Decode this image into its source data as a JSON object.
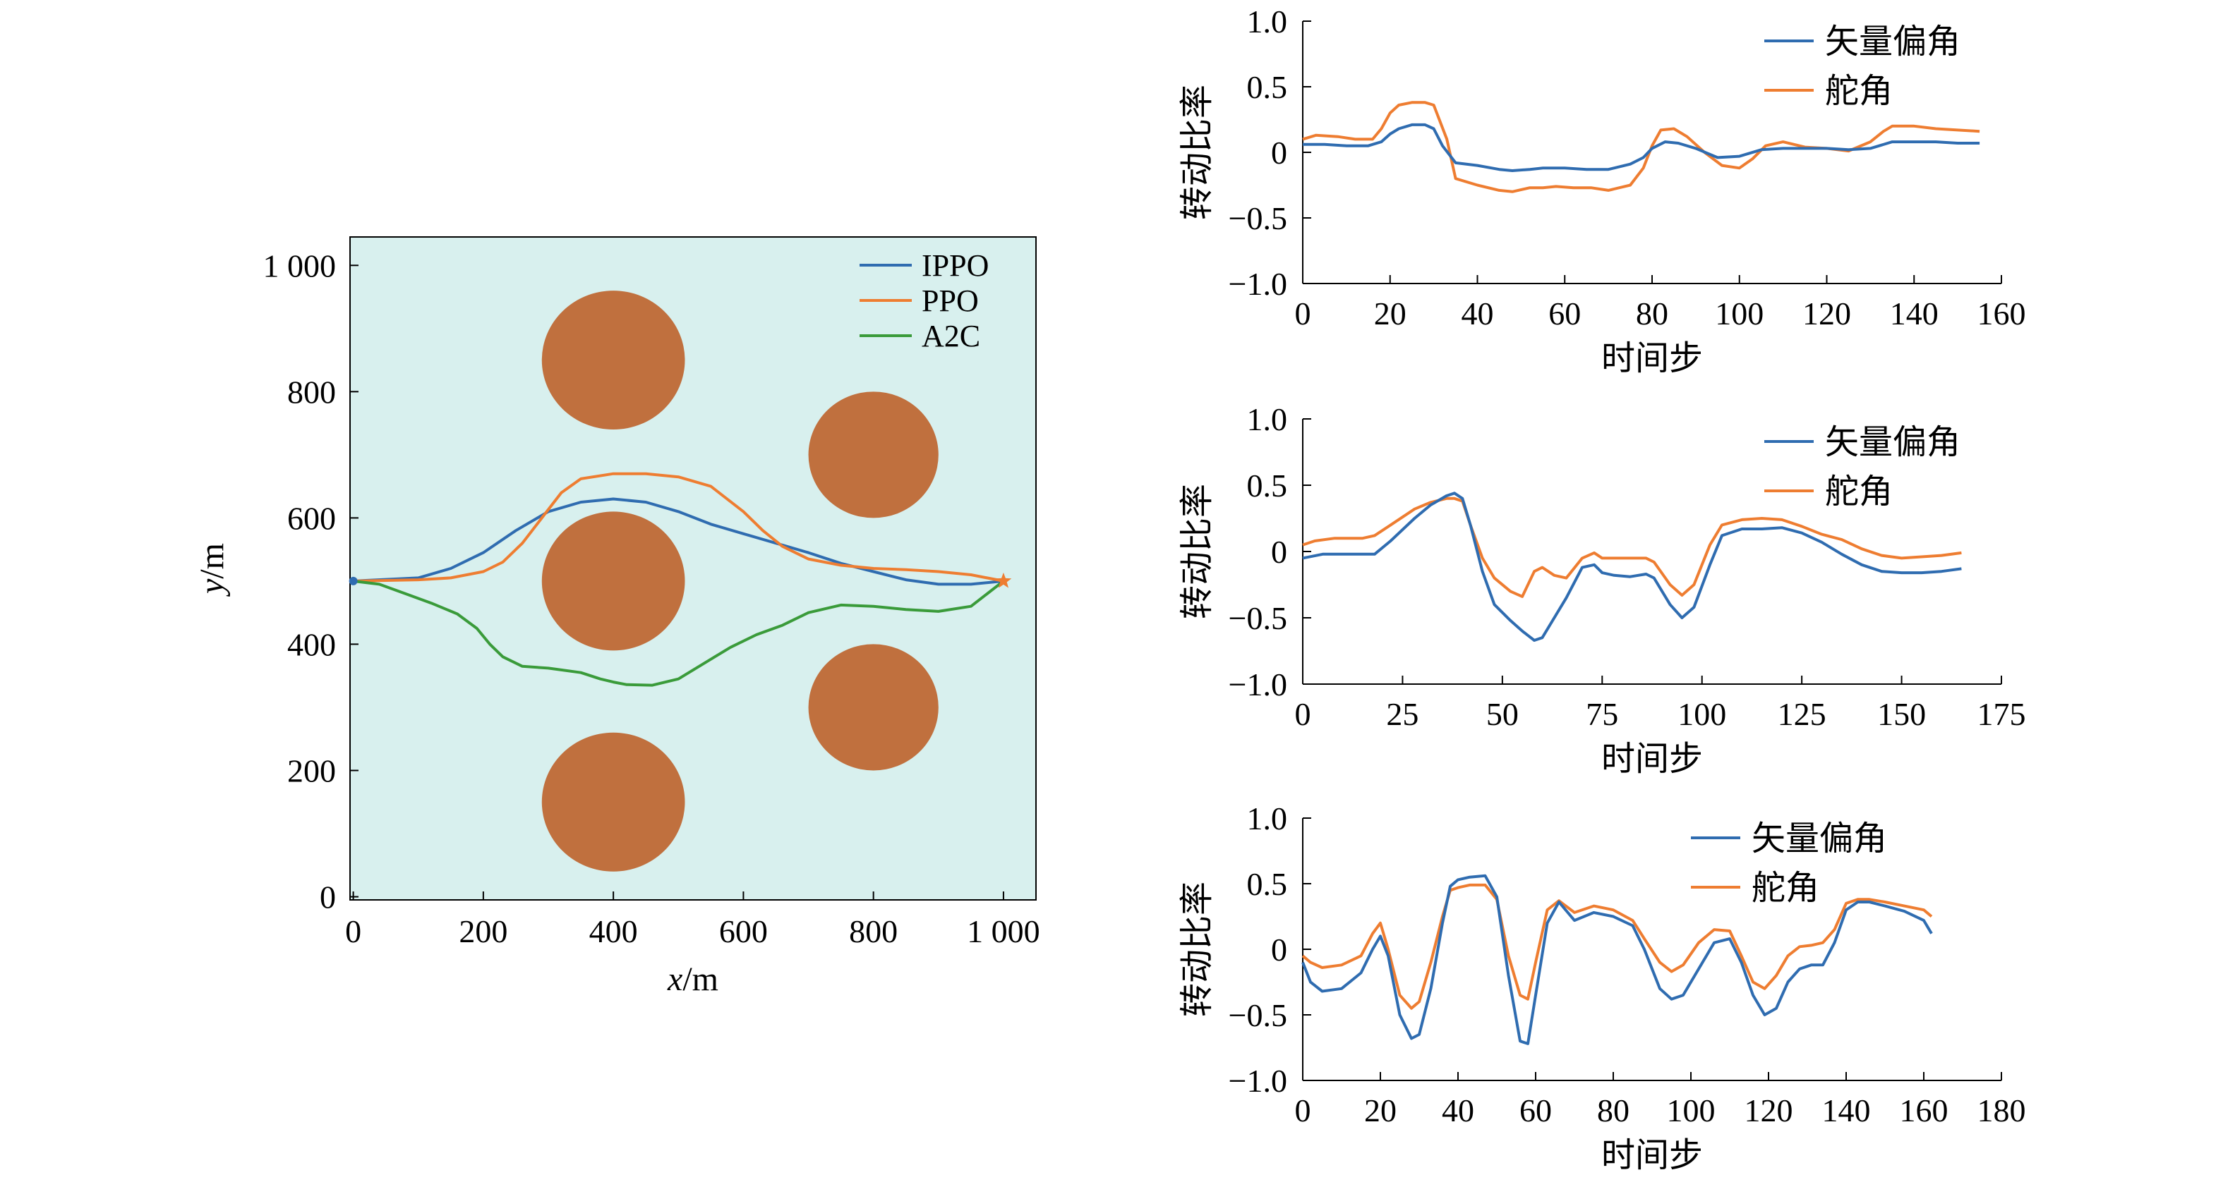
{
  "colors": {
    "ippo": "#2f6cb0",
    "ppo": "#ee7d31",
    "a2c": "#3a9b3a",
    "obstacle": "#c0703e",
    "plot_bg": "#d8f0ee",
    "vector_angle": "#2f6cb0",
    "rudder_angle": "#ee7d31"
  },
  "chart_data": [
    {
      "type": "line",
      "xlabel": "x/m",
      "ylabel": "y/m",
      "xlim": [
        -5,
        1050
      ],
      "ylim": [
        -5,
        1045
      ],
      "xticks": [
        "0",
        "200",
        "400",
        "600",
        "800",
        "1 000"
      ],
      "yticks": [
        "0",
        "200",
        "400",
        "600",
        "800",
        "1 000"
      ],
      "legend": "top-right",
      "obstacles": [
        {
          "cx": 400,
          "cy": 850,
          "r": 110
        },
        {
          "cx": 400,
          "cy": 500,
          "r": 110
        },
        {
          "cx": 400,
          "cy": 150,
          "r": 110
        },
        {
          "cx": 800,
          "cy": 700,
          "r": 100
        },
        {
          "cx": 800,
          "cy": 300,
          "r": 100
        }
      ],
      "start": [
        0,
        500
      ],
      "goal": [
        1000,
        500
      ],
      "series": [
        {
          "name": "IPPO",
          "x": [
            0,
            100,
            150,
            200,
            250,
            300,
            350,
            400,
            450,
            500,
            550,
            600,
            650,
            700,
            750,
            800,
            850,
            900,
            950,
            1000
          ],
          "y": [
            500,
            505,
            520,
            545,
            580,
            610,
            625,
            630,
            625,
            610,
            590,
            575,
            560,
            545,
            528,
            515,
            502,
            495,
            495,
            500
          ]
        },
        {
          "name": "PPO",
          "x": [
            0,
            100,
            150,
            200,
            230,
            260,
            290,
            320,
            350,
            400,
            450,
            500,
            550,
            600,
            630,
            660,
            700,
            750,
            800,
            850,
            900,
            950,
            1000
          ],
          "y": [
            500,
            502,
            505,
            515,
            530,
            560,
            600,
            640,
            662,
            670,
            670,
            665,
            650,
            610,
            580,
            555,
            535,
            525,
            520,
            518,
            515,
            510,
            500
          ]
        },
        {
          "name": "A2C",
          "x": [
            0,
            40,
            80,
            120,
            160,
            190,
            210,
            230,
            260,
            300,
            350,
            380,
            400,
            420,
            460,
            500,
            540,
            580,
            620,
            660,
            700,
            750,
            800,
            850,
            900,
            950,
            1000
          ],
          "y": [
            500,
            495,
            480,
            465,
            448,
            425,
            400,
            380,
            365,
            362,
            355,
            345,
            340,
            336,
            335,
            345,
            370,
            395,
            415,
            430,
            450,
            462,
            460,
            455,
            452,
            460,
            500
          ]
        }
      ]
    },
    {
      "type": "line",
      "xlabel": "时间步",
      "ylabel": "转动比率",
      "xlim": [
        0,
        160
      ],
      "ylim": [
        -1.0,
        1.0
      ],
      "xticks": [
        "0",
        "20",
        "40",
        "60",
        "80",
        "100",
        "120",
        "140",
        "160"
      ],
      "yticks": [
        "1.0",
        "0.5",
        "0",
        "−0.5",
        "−1.0"
      ],
      "legend": "top-right",
      "series": [
        {
          "name": "矢量偏角",
          "x": [
            0,
            5,
            10,
            15,
            18,
            20,
            22,
            25,
            28,
            30,
            32,
            35,
            40,
            45,
            48,
            52,
            55,
            60,
            65,
            70,
            75,
            78,
            80,
            83,
            86,
            90,
            95,
            100,
            105,
            110,
            115,
            120,
            125,
            130,
            135,
            140,
            145,
            150,
            155
          ],
          "y": [
            0.06,
            0.06,
            0.05,
            0.05,
            0.08,
            0.14,
            0.18,
            0.21,
            0.21,
            0.18,
            0.05,
            -0.08,
            -0.1,
            -0.13,
            -0.14,
            -0.13,
            -0.12,
            -0.12,
            -0.13,
            -0.13,
            -0.09,
            -0.04,
            0.03,
            0.08,
            0.07,
            0.03,
            -0.04,
            -0.03,
            0.02,
            0.03,
            0.03,
            0.03,
            0.02,
            0.03,
            0.08,
            0.08,
            0.08,
            0.07,
            0.07
          ]
        },
        {
          "name": "舵角",
          "x": [
            0,
            3,
            8,
            12,
            16,
            18,
            20,
            22,
            25,
            28,
            30,
            33,
            35,
            40,
            45,
            48,
            52,
            55,
            58,
            62,
            66,
            70,
            75,
            78,
            80,
            82,
            85,
            88,
            92,
            96,
            100,
            103,
            106,
            110,
            115,
            120,
            125,
            130,
            133,
            135,
            140,
            145,
            150,
            155
          ],
          "y": [
            0.1,
            0.13,
            0.12,
            0.1,
            0.1,
            0.18,
            0.3,
            0.36,
            0.38,
            0.38,
            0.36,
            0.1,
            -0.2,
            -0.25,
            -0.29,
            -0.3,
            -0.27,
            -0.27,
            -0.26,
            -0.27,
            -0.27,
            -0.29,
            -0.25,
            -0.12,
            0.05,
            0.17,
            0.18,
            0.12,
            0.0,
            -0.1,
            -0.12,
            -0.05,
            0.05,
            0.08,
            0.04,
            0.03,
            0.01,
            0.08,
            0.16,
            0.2,
            0.2,
            0.18,
            0.17,
            0.16
          ]
        }
      ]
    },
    {
      "type": "line",
      "xlabel": "时间步",
      "ylabel": "转动比率",
      "xlim": [
        0,
        175
      ],
      "ylim": [
        -1.0,
        1.0
      ],
      "xticks": [
        "0",
        "25",
        "50",
        "75",
        "100",
        "125",
        "150",
        "175"
      ],
      "yticks": [
        "1.0",
        "0.5",
        "0",
        "−0.5",
        "−1.0"
      ],
      "legend": "top-right",
      "series": [
        {
          "name": "矢量偏角",
          "x": [
            0,
            5,
            10,
            15,
            18,
            22,
            28,
            32,
            36,
            38,
            40,
            42,
            45,
            48,
            52,
            55,
            58,
            60,
            63,
            66,
            70,
            73,
            75,
            78,
            82,
            86,
            88,
            92,
            95,
            98,
            102,
            105,
            110,
            115,
            120,
            125,
            130,
            135,
            140,
            145,
            150,
            155,
            160,
            165
          ],
          "y": [
            -0.05,
            -0.02,
            -0.02,
            -0.02,
            -0.02,
            0.08,
            0.25,
            0.35,
            0.42,
            0.44,
            0.4,
            0.2,
            -0.15,
            -0.4,
            -0.52,
            -0.6,
            -0.67,
            -0.65,
            -0.5,
            -0.35,
            -0.12,
            -0.1,
            -0.16,
            -0.18,
            -0.19,
            -0.17,
            -0.2,
            -0.4,
            -0.5,
            -0.42,
            -0.1,
            0.12,
            0.17,
            0.17,
            0.18,
            0.14,
            0.07,
            -0.02,
            -0.1,
            -0.15,
            -0.16,
            -0.16,
            -0.15,
            -0.13
          ]
        },
        {
          "name": "舵角",
          "x": [
            0,
            3,
            8,
            15,
            18,
            22,
            28,
            32,
            36,
            38,
            40,
            42,
            45,
            48,
            52,
            55,
            58,
            60,
            63,
            66,
            70,
            73,
            75,
            78,
            82,
            86,
            88,
            92,
            95,
            98,
            102,
            105,
            110,
            115,
            120,
            125,
            130,
            135,
            140,
            145,
            150,
            155,
            160,
            165
          ],
          "y": [
            0.05,
            0.08,
            0.1,
            0.1,
            0.12,
            0.2,
            0.32,
            0.37,
            0.4,
            0.4,
            0.38,
            0.2,
            -0.05,
            -0.2,
            -0.3,
            -0.34,
            -0.15,
            -0.12,
            -0.18,
            -0.2,
            -0.05,
            -0.01,
            -0.05,
            -0.05,
            -0.05,
            -0.05,
            -0.08,
            -0.25,
            -0.33,
            -0.25,
            0.05,
            0.2,
            0.24,
            0.25,
            0.24,
            0.19,
            0.13,
            0.09,
            0.02,
            -0.03,
            -0.05,
            -0.04,
            -0.03,
            -0.01
          ]
        }
      ]
    },
    {
      "type": "line",
      "xlabel": "时间步",
      "ylabel": "转动比率",
      "xlim": [
        0,
        180
      ],
      "ylim": [
        -1.0,
        1.0
      ],
      "xticks": [
        "0",
        "20",
        "40",
        "60",
        "80",
        "100",
        "120",
        "140",
        "160",
        "180"
      ],
      "yticks": [
        "1.0",
        "0.5",
        "0",
        "−0.5",
        "−1.0"
      ],
      "legend": "top-right",
      "series": [
        {
          "name": "矢量偏角",
          "x": [
            0,
            2,
            5,
            10,
            15,
            18,
            20,
            22,
            25,
            28,
            30,
            33,
            36,
            38,
            40,
            43,
            47,
            50,
            53,
            56,
            58,
            60,
            63,
            66,
            70,
            75,
            80,
            85,
            88,
            92,
            95,
            98,
            102,
            106,
            110,
            113,
            116,
            119,
            122,
            125,
            128,
            131,
            134,
            137,
            140,
            143,
            146,
            150,
            155,
            160,
            162
          ],
          "y": [
            -0.1,
            -0.25,
            -0.32,
            -0.3,
            -0.18,
            0.0,
            0.1,
            -0.05,
            -0.5,
            -0.68,
            -0.65,
            -0.3,
            0.2,
            0.48,
            0.53,
            0.55,
            0.56,
            0.4,
            -0.2,
            -0.7,
            -0.72,
            -0.35,
            0.2,
            0.36,
            0.22,
            0.28,
            0.25,
            0.18,
            0.0,
            -0.3,
            -0.38,
            -0.35,
            -0.15,
            0.05,
            0.08,
            -0.1,
            -0.35,
            -0.5,
            -0.45,
            -0.25,
            -0.15,
            -0.12,
            -0.12,
            0.05,
            0.3,
            0.36,
            0.36,
            0.33,
            0.29,
            0.22,
            0.12
          ]
        },
        {
          "name": "舵角",
          "x": [
            0,
            2,
            5,
            10,
            15,
            18,
            20,
            22,
            25,
            28,
            30,
            33,
            36,
            38,
            40,
            43,
            47,
            50,
            53,
            56,
            58,
            60,
            63,
            66,
            70,
            75,
            80,
            85,
            88,
            92,
            95,
            98,
            102,
            106,
            110,
            113,
            116,
            119,
            122,
            125,
            128,
            131,
            134,
            137,
            140,
            143,
            146,
            150,
            155,
            160,
            162
          ],
          "y": [
            -0.05,
            -0.1,
            -0.14,
            -0.12,
            -0.05,
            0.12,
            0.2,
            0.0,
            -0.35,
            -0.45,
            -0.4,
            -0.1,
            0.25,
            0.45,
            0.47,
            0.49,
            0.49,
            0.38,
            -0.05,
            -0.35,
            -0.38,
            -0.1,
            0.3,
            0.37,
            0.28,
            0.33,
            0.3,
            0.22,
            0.08,
            -0.1,
            -0.17,
            -0.12,
            0.05,
            0.15,
            0.14,
            -0.05,
            -0.25,
            -0.3,
            -0.2,
            -0.05,
            0.02,
            0.03,
            0.05,
            0.15,
            0.35,
            0.38,
            0.38,
            0.36,
            0.33,
            0.3,
            0.25
          ]
        }
      ]
    }
  ]
}
